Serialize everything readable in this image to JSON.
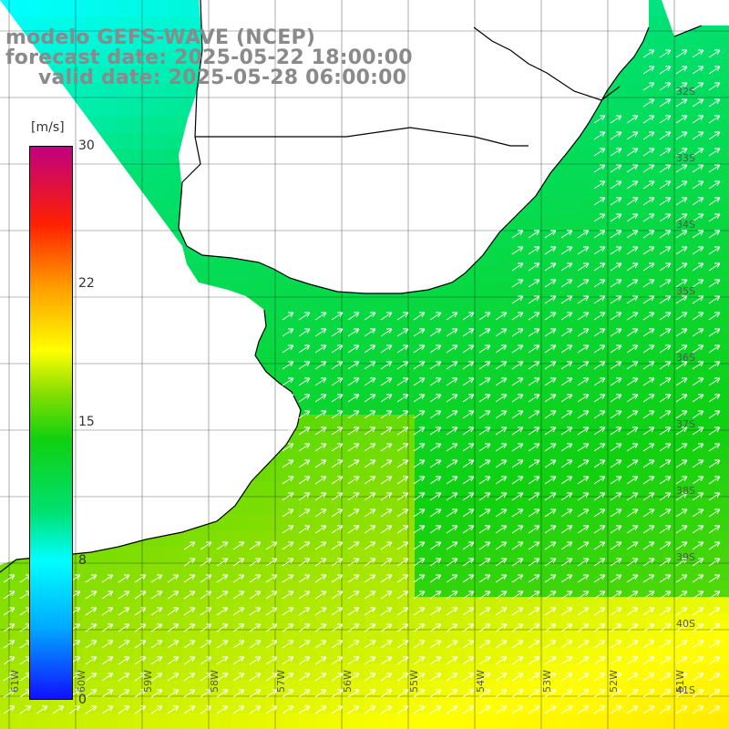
{
  "title": {
    "line1": "modelo GEFS-WAVE (NCEP)",
    "line2": "forecast date: 2025-05-22 18:00:00",
    "line3": "valid date: 2025-05-28 06:00:00"
  },
  "colorbar": {
    "unit": "[m/s]",
    "ticks": [
      "30",
      "22",
      "15",
      "8",
      "0"
    ]
  },
  "lat_labels": [
    "32S",
    "33S",
    "34S",
    "35S",
    "36S",
    "37S",
    "38S",
    "39S",
    "40S",
    "41S"
  ],
  "lon_labels": [
    "61W",
    "60W",
    "59W",
    "58W",
    "57W",
    "56W",
    "55W",
    "54W",
    "53W",
    "52W",
    "51W"
  ],
  "colors": {
    "land": "#ffffff",
    "coast": "#000000",
    "grid": "#000000",
    "arrow": "#ffffff",
    "title_text": "#8a8a8a"
  }
}
